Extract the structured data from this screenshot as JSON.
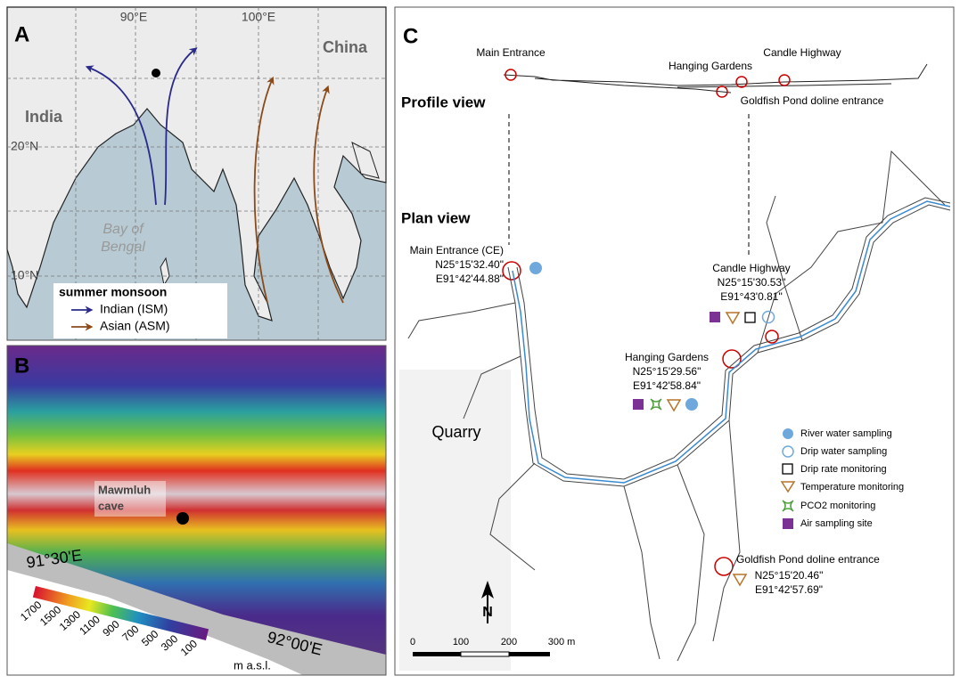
{
  "panel_a": {
    "label": "A",
    "lon_labels": [
      "90°E",
      "100°E"
    ],
    "lat_labels": [
      "20°N",
      "10°N"
    ],
    "places": {
      "india": "India",
      "china": "China",
      "bay": [
        "Bay of",
        "Bengal"
      ]
    },
    "legend": {
      "title": "summer monsoon",
      "items": [
        "Indian (ISM)",
        "Asian (ASM)"
      ]
    }
  },
  "panel_b": {
    "label": "B",
    "cave": [
      "Mawmluh",
      "cave"
    ],
    "lon_labels": [
      "91°30'E",
      "92°00'E"
    ],
    "colorbar": {
      "ticks": [
        1700,
        1500,
        1300,
        1100,
        900,
        700,
        500,
        300,
        100
      ],
      "unit": "m a.s.l."
    }
  },
  "panel_c": {
    "label": "C",
    "profile_title": "Profile view",
    "plan_title": "Plan view",
    "profile_labels": [
      "Main Entrance",
      "Hanging Gardens",
      "Candle Highway",
      "Goldfish Pond doline entrance"
    ],
    "sites": [
      {
        "name": "Main Entrance (CE)",
        "lat": "N25°15'32.40\"",
        "lon": "E91°42'44.88\""
      },
      {
        "name": "Candle Highway",
        "lat": "N25°15'30.53\"",
        "lon": "E91°43'0.81\""
      },
      {
        "name": "Hanging Gardens",
        "lat": "N25°15'29.56\"",
        "lon": "E91°42'58.84\""
      },
      {
        "name": "Goldfish Pond doline entrance",
        "lat": "N25°15'20.46\"",
        "lon": "E91°42'57.69\""
      }
    ],
    "quarry": "Quarry",
    "legend": [
      "River water sampling",
      "Drip water sampling",
      "Drip rate monitoring",
      "Temperature monitoring",
      "PCO2 monitoring",
      "Air sampling site"
    ],
    "scale": [
      "0",
      "100",
      "200",
      "300 m"
    ],
    "north": "N"
  }
}
